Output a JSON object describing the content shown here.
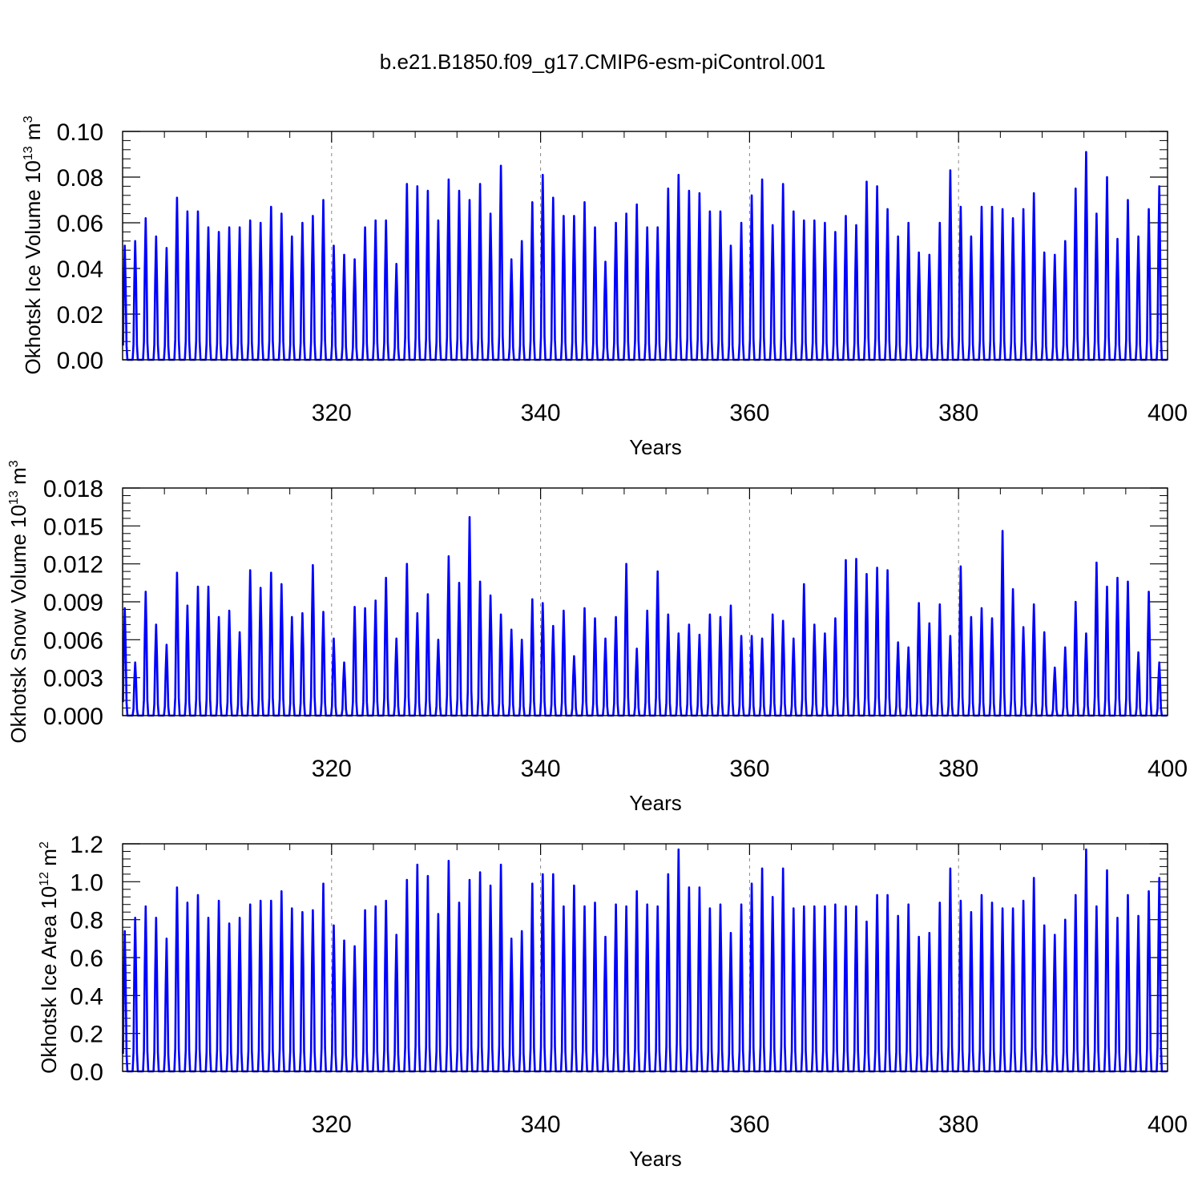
{
  "title": "b.e21.B1850.f09_g17.CMIP6-esm-piControl.001",
  "colors": {
    "line": "#0000ff",
    "axis": "#000000",
    "grid": "#888888"
  },
  "chart_data": [
    {
      "type": "line",
      "title": "",
      "xlabel": "Years",
      "ylabel": {
        "text": "Okhotsk Ice Volume 10",
        "exponent": "13",
        "unit": "m",
        "unit_exponent": "3"
      },
      "xlim": [
        300,
        400
      ],
      "ylim": [
        0,
        0.1
      ],
      "x_ticks": [
        320,
        340,
        360,
        380,
        400
      ],
      "x_tick_labels": [
        "320",
        "340",
        "360",
        "380",
        "400"
      ],
      "y_ticks": [
        0,
        0.02,
        0.04,
        0.06,
        0.08,
        0.1
      ],
      "y_tick_labels": [
        "0.00",
        "0.02",
        "0.04",
        "0.06",
        "0.08",
        "0.10"
      ],
      "grid": "vertical dashed at major x ticks",
      "series": [
        {
          "annual_maxima": [
            0.05,
            0.052,
            0.062,
            0.054,
            0.049,
            0.071,
            0.065,
            0.065,
            0.058,
            0.056,
            0.058,
            0.058,
            0.061,
            0.06,
            0.067,
            0.064,
            0.054,
            0.06,
            0.063,
            0.07,
            0.05,
            0.046,
            0.044,
            0.058,
            0.061,
            0.061,
            0.042,
            0.077,
            0.076,
            0.074,
            0.061,
            0.079,
            0.074,
            0.07,
            0.077,
            0.064,
            0.085,
            0.044,
            0.052,
            0.069,
            0.081,
            0.071,
            0.063,
            0.063,
            0.069,
            0.058,
            0.043,
            0.06,
            0.064,
            0.068,
            0.058,
            0.058,
            0.075,
            0.081,
            0.074,
            0.073,
            0.065,
            0.065,
            0.05,
            0.06,
            0.072,
            0.079,
            0.059,
            0.077,
            0.065,
            0.061,
            0.061,
            0.06,
            0.056,
            0.063,
            0.059,
            0.078,
            0.076,
            0.066,
            0.054,
            0.06,
            0.047,
            0.046,
            0.06,
            0.083,
            0.067,
            0.054,
            0.067,
            0.067,
            0.066,
            0.062,
            0.066,
            0.073,
            0.047,
            0.046,
            0.052,
            0.075,
            0.091,
            0.064,
            0.08,
            0.053,
            0.07,
            0.054,
            0.066,
            0.076
          ]
        }
      ]
    },
    {
      "type": "line",
      "title": "",
      "xlabel": "Years",
      "ylabel": {
        "text": "Okhotsk Snow Volume 10",
        "exponent": "13",
        "unit": "m",
        "unit_exponent": "3"
      },
      "xlim": [
        300,
        400
      ],
      "ylim": [
        0,
        0.018
      ],
      "x_ticks": [
        320,
        340,
        360,
        380,
        400
      ],
      "x_tick_labels": [
        "320",
        "340",
        "360",
        "380",
        "400"
      ],
      "y_ticks": [
        0,
        0.003,
        0.006,
        0.009,
        0.012,
        0.015,
        0.018
      ],
      "y_tick_labels": [
        "0.000",
        "0.003",
        "0.006",
        "0.009",
        "0.012",
        "0.015",
        "0.018"
      ],
      "grid": "vertical dashed at major x ticks",
      "series": [
        {
          "annual_maxima": [
            0.0085,
            0.0042,
            0.0098,
            0.0072,
            0.0056,
            0.0113,
            0.0087,
            0.0102,
            0.0102,
            0.0078,
            0.0083,
            0.0066,
            0.0115,
            0.0101,
            0.0113,
            0.0104,
            0.0078,
            0.0081,
            0.0119,
            0.0082,
            0.0061,
            0.0042,
            0.0086,
            0.0085,
            0.0091,
            0.0109,
            0.0061,
            0.012,
            0.0081,
            0.0096,
            0.006,
            0.0126,
            0.0105,
            0.0157,
            0.0106,
            0.0095,
            0.008,
            0.0068,
            0.006,
            0.0092,
            0.0089,
            0.0071,
            0.0083,
            0.0047,
            0.0085,
            0.0077,
            0.0061,
            0.0078,
            0.012,
            0.0053,
            0.0083,
            0.0114,
            0.008,
            0.0065,
            0.0072,
            0.0064,
            0.008,
            0.0078,
            0.0087,
            0.0063,
            0.0063,
            0.0061,
            0.008,
            0.0075,
            0.0061,
            0.0104,
            0.0072,
            0.0065,
            0.0077,
            0.0123,
            0.0124,
            0.0112,
            0.0117,
            0.0115,
            0.0058,
            0.0054,
            0.0089,
            0.0073,
            0.0088,
            0.0063,
            0.0118,
            0.0078,
            0.0085,
            0.0077,
            0.0146,
            0.01,
            0.007,
            0.0088,
            0.0066,
            0.0038,
            0.0054,
            0.009,
            0.0065,
            0.0121,
            0.0102,
            0.0109,
            0.0106,
            0.005,
            0.0098,
            0.0042
          ]
        }
      ]
    },
    {
      "type": "line",
      "title": "",
      "xlabel": "Years",
      "ylabel": {
        "text": "Okhotsk Ice Area 10",
        "exponent": "12",
        "unit": "m",
        "unit_exponent": "2"
      },
      "xlim": [
        300,
        400
      ],
      "ylim": [
        0,
        1.2
      ],
      "x_ticks": [
        320,
        340,
        360,
        380,
        400
      ],
      "x_tick_labels": [
        "320",
        "340",
        "360",
        "380",
        "400"
      ],
      "y_ticks": [
        0,
        0.2,
        0.4,
        0.6,
        0.8,
        1.0,
        1.2
      ],
      "y_tick_labels": [
        "0.0",
        "0.2",
        "0.4",
        "0.6",
        "0.8",
        "1.0",
        "1.2"
      ],
      "grid": "vertical dashed at major x ticks",
      "series": [
        {
          "annual_maxima": [
            0.74,
            0.81,
            0.87,
            0.81,
            0.7,
            0.97,
            0.89,
            0.93,
            0.81,
            0.9,
            0.78,
            0.81,
            0.88,
            0.9,
            0.9,
            0.95,
            0.86,
            0.84,
            0.85,
            0.99,
            0.77,
            0.69,
            0.66,
            0.85,
            0.87,
            0.9,
            0.72,
            1.01,
            1.09,
            1.03,
            0.83,
            1.11,
            0.89,
            1.01,
            1.05,
            0.98,
            1.09,
            0.7,
            0.74,
            0.99,
            1.04,
            1.04,
            0.87,
            0.98,
            0.87,
            0.89,
            0.71,
            0.88,
            0.87,
            0.95,
            0.88,
            0.87,
            1.04,
            1.17,
            0.97,
            0.97,
            0.86,
            0.88,
            0.73,
            0.88,
            0.99,
            1.07,
            0.92,
            1.07,
            0.86,
            0.87,
            0.87,
            0.87,
            0.88,
            0.87,
            0.87,
            0.79,
            0.93,
            0.93,
            0.82,
            0.88,
            0.71,
            0.73,
            0.89,
            1.07,
            0.9,
            0.84,
            0.93,
            0.89,
            0.86,
            0.86,
            0.9,
            1.02,
            0.77,
            0.72,
            0.8,
            0.93,
            1.17,
            0.87,
            1.06,
            0.81,
            0.93,
            0.82,
            0.95,
            1.02
          ]
        }
      ]
    }
  ]
}
